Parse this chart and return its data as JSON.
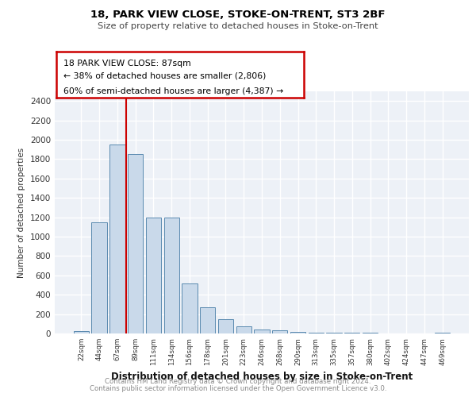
{
  "title1": "18, PARK VIEW CLOSE, STOKE-ON-TRENT, ST3 2BF",
  "title2": "Size of property relative to detached houses in Stoke-on-Trent",
  "xlabel": "Distribution of detached houses by size in Stoke-on-Trent",
  "ylabel": "Number of detached properties",
  "categories": [
    "22sqm",
    "44sqm",
    "67sqm",
    "89sqm",
    "111sqm",
    "134sqm",
    "156sqm",
    "178sqm",
    "201sqm",
    "223sqm",
    "246sqm",
    "268sqm",
    "290sqm",
    "313sqm",
    "335sqm",
    "357sqm",
    "380sqm",
    "402sqm",
    "424sqm",
    "447sqm",
    "469sqm"
  ],
  "values": [
    25,
    1150,
    1950,
    1850,
    1200,
    1200,
    520,
    270,
    150,
    75,
    40,
    30,
    15,
    12,
    8,
    5,
    5,
    3,
    2,
    2,
    10
  ],
  "bar_color": "#c9d9ea",
  "bar_edge_color": "#5a8ab0",
  "vline_x_idx": 2,
  "vline_color": "#cc0000",
  "annotation_line1": "18 PARK VIEW CLOSE: 87sqm",
  "annotation_line2": "← 38% of detached houses are smaller (2,806)",
  "annotation_line3": "60% of semi-detached houses are larger (4,387) →",
  "annotation_box_color": "#ffffff",
  "annotation_box_edge": "#cc0000",
  "ylim": [
    0,
    2500
  ],
  "yticks": [
    0,
    200,
    400,
    600,
    800,
    1000,
    1200,
    1400,
    1600,
    1800,
    2000,
    2200,
    2400
  ],
  "footer1": "Contains HM Land Registry data © Crown copyright and database right 2024.",
  "footer2": "Contains public sector information licensed under the Open Government Licence v3.0.",
  "bg_color": "#edf1f7",
  "grid_color": "#ffffff"
}
